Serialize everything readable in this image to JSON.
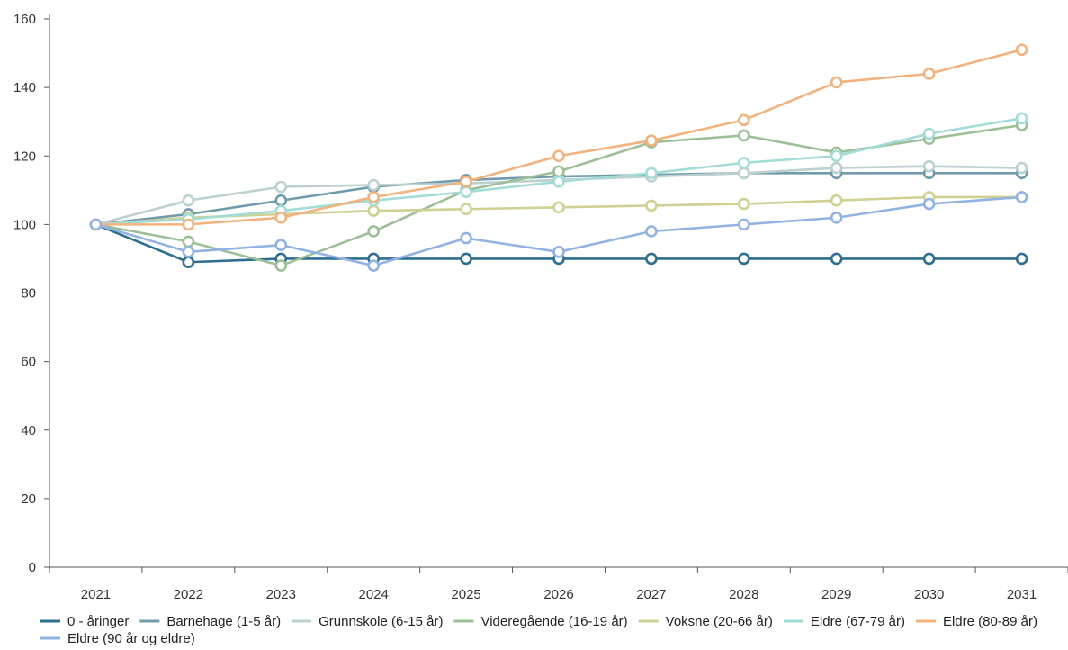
{
  "chart_data": {
    "type": "line",
    "title": "",
    "xlabel": "",
    "ylabel": "",
    "categories": [
      "2021",
      "2022",
      "2023",
      "2024",
      "2025",
      "2026",
      "2027",
      "2028",
      "2029",
      "2030",
      "2031"
    ],
    "ylim": [
      0,
      160
    ],
    "yticks": [
      0,
      20,
      40,
      60,
      80,
      100,
      120,
      140,
      160
    ],
    "grid": false,
    "legend_position": "bottom",
    "series": [
      {
        "name": "0 - åringer",
        "color": "#2e6f8e",
        "values": [
          100,
          89,
          90,
          90,
          90,
          90,
          90,
          90,
          90,
          90,
          90
        ]
      },
      {
        "name": "Barnehage (1-5 år)",
        "color": "#6f9bab",
        "values": [
          100,
          103,
          107,
          111,
          113,
          114,
          114.5,
          115,
          115,
          115,
          115
        ]
      },
      {
        "name": "Grunnskole (6-15 år)",
        "color": "#bccfd1",
        "values": [
          100,
          107,
          111,
          111.5,
          112,
          113,
          114,
          115,
          116.5,
          117,
          116.5
        ]
      },
      {
        "name": "Videregående (16-19 år)",
        "color": "#9cbf97",
        "values": [
          100,
          95,
          88,
          98,
          110,
          115.5,
          124,
          126,
          121,
          125,
          129
        ]
      },
      {
        "name": "Voksne (20-66 år)",
        "color": "#cfd092",
        "values": [
          100,
          102,
          103,
          104,
          104.5,
          105,
          105.5,
          106,
          107,
          108,
          108
        ]
      },
      {
        "name": "Eldre (67-79 år)",
        "color": "#a3dcd6",
        "values": [
          100,
          101.5,
          104,
          107,
          109.5,
          112.5,
          115,
          118,
          120,
          126.5,
          131
        ]
      },
      {
        "name": "Eldre (80-89 år)",
        "color": "#f2b27e",
        "values": [
          100,
          100,
          102,
          108,
          112.5,
          120,
          124.5,
          130.5,
          141.5,
          144,
          151
        ]
      },
      {
        "name": "Eldre (90 år og eldre)",
        "color": "#92b3e2",
        "values": [
          100,
          92,
          94,
          88,
          96,
          92,
          98,
          100,
          102,
          106,
          108
        ]
      }
    ]
  }
}
